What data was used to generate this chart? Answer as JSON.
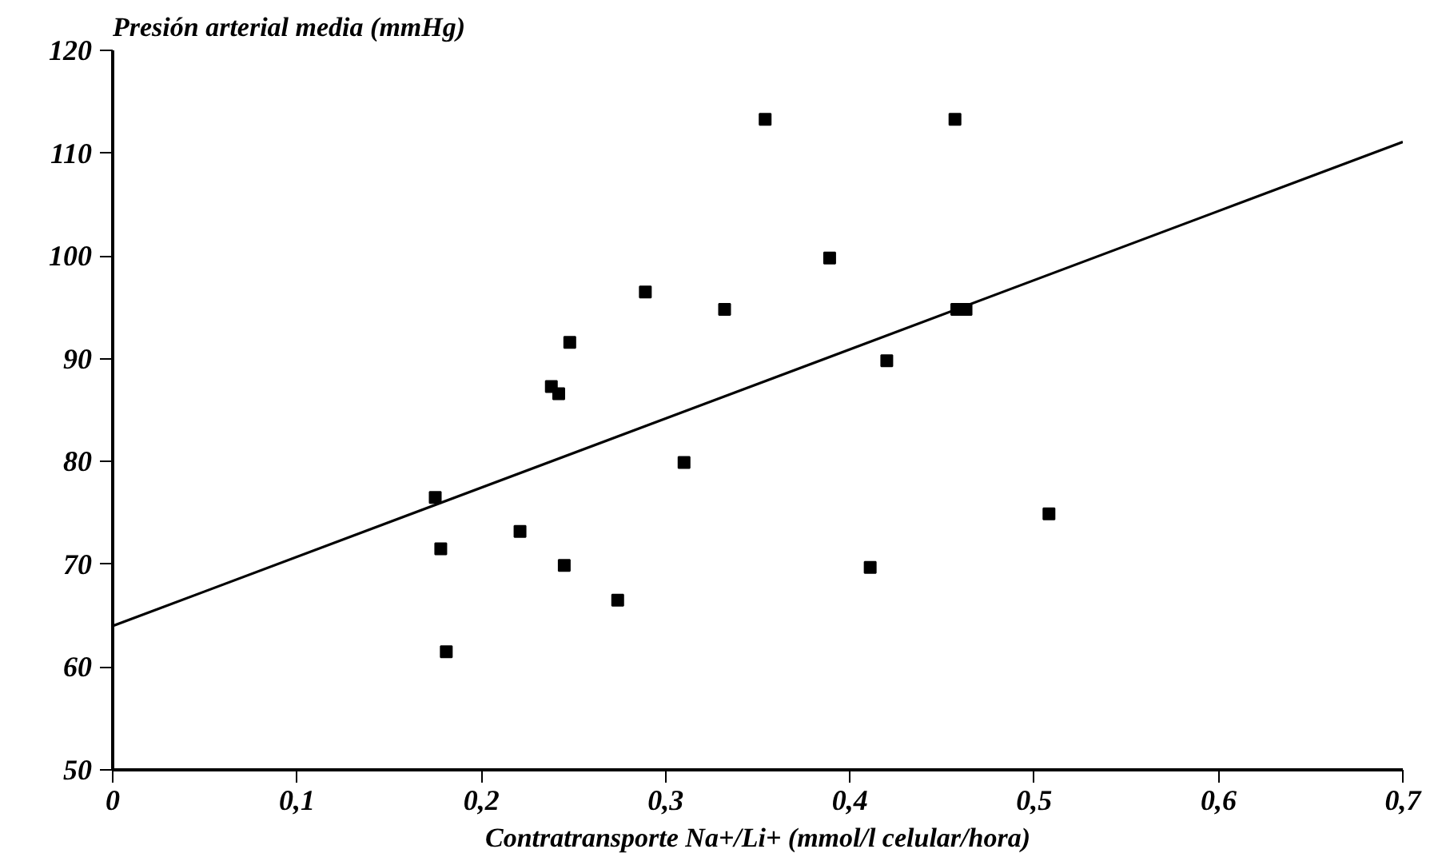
{
  "chart_data": {
    "type": "scatter",
    "ylabel": "Presión arterial media (mmHg)",
    "xlabel": "Contratransporte Na+/Li+ (mmol/l celular/hora)",
    "grid": false,
    "xlim": [
      0,
      0.7
    ],
    "xticks": [
      {
        "value": 0,
        "label": "0"
      },
      {
        "value": 0.1,
        "label": "0,1"
      },
      {
        "value": 0.2,
        "label": "0,2"
      },
      {
        "value": 0.3,
        "label": "0,3"
      },
      {
        "value": 0.4,
        "label": "0,4"
      },
      {
        "value": 0.5,
        "label": "0,5"
      },
      {
        "value": 0.6,
        "label": "0,6"
      },
      {
        "value": 0.7,
        "label": "0,7"
      }
    ],
    "ylim": [
      50,
      120
    ],
    "yticks": [
      50,
      60,
      70,
      80,
      90,
      100,
      110,
      120
    ],
    "series": [
      {
        "marker": "square",
        "color": "#000000",
        "x": [
          0.175,
          0.178,
          0.181,
          0.221,
          0.238,
          0.242,
          0.248,
          0.245,
          0.274,
          0.289,
          0.31,
          0.332,
          0.354,
          0.389,
          0.411,
          0.42,
          0.457,
          0.458,
          0.463,
          0.508
        ],
        "values": [
          76.5,
          71.5,
          61.5,
          73.2,
          87.3,
          86.6,
          91.6,
          69.9,
          66.5,
          96.5,
          79.9,
          94.8,
          113.3,
          99.8,
          69.7,
          89.8,
          113.3,
          94.8,
          94.8,
          74.9
        ]
      },
      {
        "type": "line",
        "color": "#000000",
        "x": [
          0,
          0.7
        ],
        "values": [
          64.0,
          111.1
        ]
      }
    ]
  }
}
